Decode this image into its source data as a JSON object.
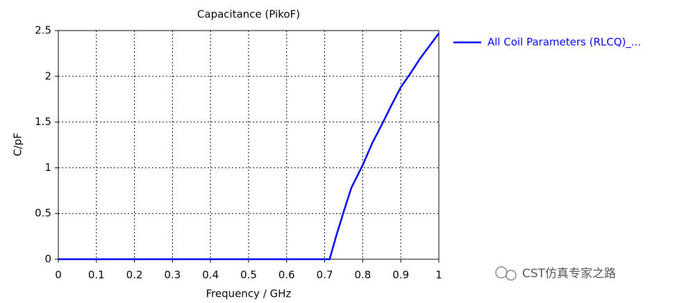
{
  "chart_data": {
    "type": "line",
    "title": "Capacitance (PikoF)",
    "x_label": "Frequency / GHz",
    "y_label": "C/pF",
    "x": [
      0,
      0.1,
      0.2,
      0.3,
      0.4,
      0.5,
      0.6,
      0.7,
      0.713,
      0.73,
      0.75,
      0.77,
      0.8,
      0.825,
      0.85,
      0.875,
      0.9,
      0.925,
      0.95,
      0.975,
      1.0
    ],
    "series": [
      {
        "name": "All Coil Parameters (RLCQ)_...",
        "color": "#0000ff",
        "values": [
          0,
          0,
          0,
          0,
          0,
          0,
          0,
          0,
          0,
          0.25,
          0.52,
          0.78,
          1.03,
          1.27,
          1.47,
          1.68,
          1.88,
          2.03,
          2.19,
          2.33,
          2.47
        ]
      }
    ],
    "xlim": [
      0,
      1
    ],
    "ylim": [
      0,
      2.5
    ],
    "xticks": [
      0,
      0.1,
      0.2,
      0.3,
      0.4,
      0.5,
      0.6,
      0.7,
      0.8,
      0.9,
      1
    ],
    "yticks": [
      0,
      0.5,
      1,
      1.5,
      2,
      2.5
    ],
    "grid": true,
    "legend": "right",
    "watermark": "CST仿真专家之路"
  }
}
